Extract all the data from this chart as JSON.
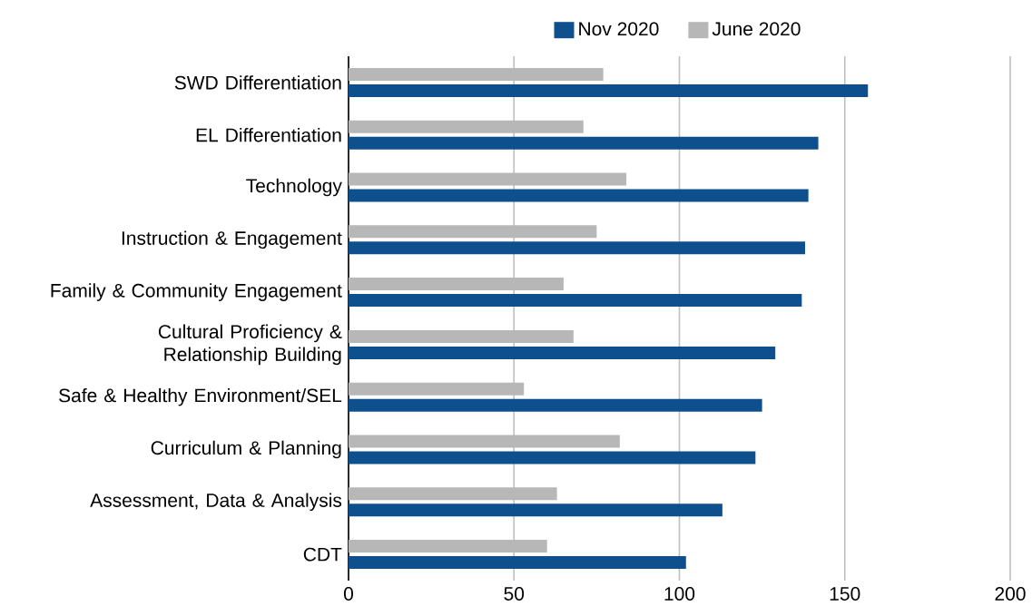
{
  "chart_data": {
    "type": "bar",
    "orientation": "horizontal",
    "categories": [
      "SWD Differentiation",
      "EL Differentiation",
      "Technology",
      "Instruction & Engagement",
      "Family & Community Engagement",
      "Cultural Proficiency & Relationship Building",
      "Safe & Healthy Environment/SEL",
      "Curriculum & Planning",
      "Assessment, Data & Analysis",
      "CDT"
    ],
    "series": [
      {
        "name": "Nov 2020",
        "color": "#0e4f8e",
        "values": [
          157,
          142,
          139,
          138,
          137,
          129,
          125,
          123,
          113,
          102
        ]
      },
      {
        "name": "June 2020",
        "color": "#b7b7b7",
        "values": [
          77,
          71,
          84,
          75,
          65,
          68,
          53,
          82,
          63,
          60
        ]
      }
    ],
    "xlim": [
      0,
      200
    ],
    "xticks": [
      0,
      50,
      100,
      150,
      200
    ],
    "grid": "x",
    "legend": "top"
  }
}
